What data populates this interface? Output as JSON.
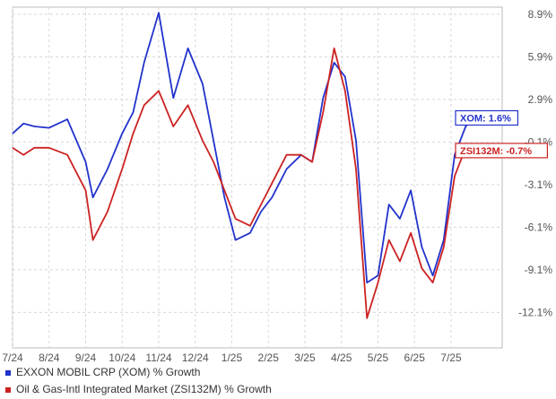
{
  "chart_data": {
    "type": "line",
    "xlabel": "",
    "ylabel": "",
    "ylim": [
      -14.6,
      9.4
    ],
    "grid": true,
    "legend_position": "bottom-left",
    "x_ticks": [
      "7/24",
      "8/24",
      "9/24",
      "10/24",
      "11/24",
      "12/24",
      "1/25",
      "2/25",
      "3/25",
      "4/25",
      "5/25",
      "6/25",
      "7/25"
    ],
    "y_ticks": [
      "8.9%",
      "5.9%",
      "2.9%",
      "-0.1%",
      "-3.1%",
      "-6.1%",
      "-9.1%",
      "-12.1%"
    ],
    "series": [
      {
        "name": "EXXON MOBIL CRP (XOM) % Growth",
        "color": "#2233cc",
        "end_label": "XOM: 1.6%",
        "x": [
          0,
          0.3,
          0.6,
          1,
          1.5,
          2,
          2.2,
          2.6,
          3,
          3.3,
          3.6,
          4,
          4.4,
          4.8,
          5.2,
          5.5,
          5.8,
          6.1,
          6.5,
          6.8,
          7.1,
          7.5,
          7.9,
          8.2,
          8.5,
          8.8,
          9.1,
          9.4,
          9.7,
          10.0,
          10.3,
          10.6,
          10.9,
          11.2,
          11.5,
          11.8,
          12.1,
          12.4,
          12.6
        ],
        "values": [
          0.5,
          1.2,
          1.0,
          0.9,
          1.5,
          -1.5,
          -4.0,
          -2.0,
          0.5,
          2.0,
          5.5,
          9.0,
          3.0,
          6.5,
          4.0,
          0.0,
          -4.0,
          -7.0,
          -6.5,
          -5.0,
          -4.0,
          -2.0,
          -1.0,
          -1.5,
          3.0,
          5.5,
          4.5,
          0.0,
          -10.0,
          -9.5,
          -4.5,
          -5.5,
          -3.5,
          -7.5,
          -9.5,
          -7.0,
          -1.0,
          1.0,
          1.6
        ]
      },
      {
        "name": "Oil & Gas-Intl Integrated Market (ZSI132M) % Growth",
        "color": "#cc2222",
        "end_label": "ZSI132M: -0.7%",
        "x": [
          0,
          0.3,
          0.6,
          1,
          1.5,
          2,
          2.2,
          2.6,
          3,
          3.3,
          3.6,
          4,
          4.4,
          4.8,
          5.2,
          5.5,
          5.8,
          6.1,
          6.5,
          6.8,
          7.1,
          7.5,
          7.9,
          8.2,
          8.5,
          8.8,
          9.1,
          9.4,
          9.7,
          10.0,
          10.3,
          10.6,
          10.9,
          11.2,
          11.5,
          11.8,
          12.1,
          12.4,
          12.6
        ],
        "values": [
          -0.5,
          -1.0,
          -0.5,
          -0.5,
          -1.0,
          -3.5,
          -7.0,
          -5.0,
          -2.0,
          0.5,
          2.5,
          3.5,
          1.0,
          2.5,
          0.0,
          -1.5,
          -3.5,
          -5.5,
          -6.0,
          -4.5,
          -3.0,
          -1.0,
          -1.0,
          -1.5,
          2.0,
          6.5,
          3.5,
          -2.0,
          -12.5,
          -10.0,
          -7.0,
          -8.5,
          -6.5,
          -9.0,
          -10.0,
          -7.5,
          -2.5,
          -0.5,
          -0.7
        ]
      }
    ]
  }
}
